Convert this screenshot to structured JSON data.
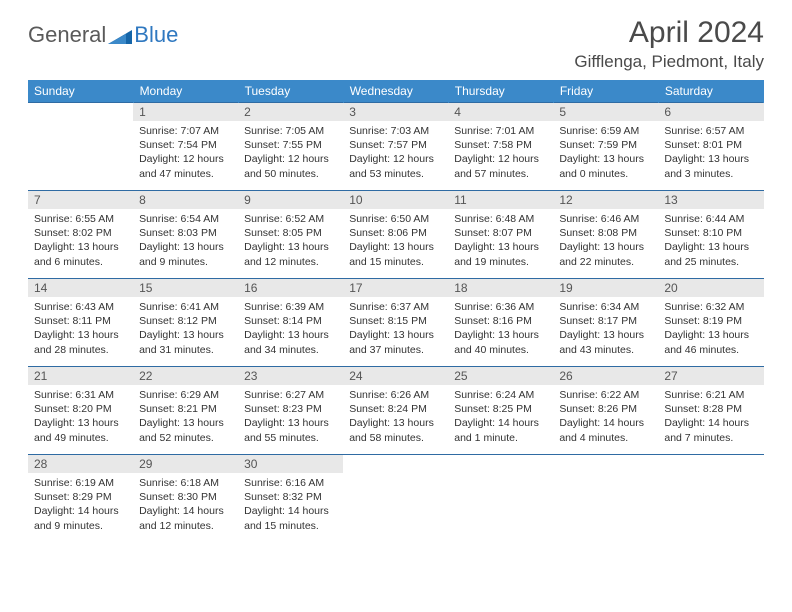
{
  "logo": {
    "general": "General",
    "blue": "Blue"
  },
  "title": "April 2024",
  "location": "Gifflenga, Piedmont, Italy",
  "colors": {
    "header_bg": "#3b89c9",
    "header_text": "#ffffff",
    "row_border": "#2f6ba3",
    "daynum_bg": "#e8e8e8",
    "logo_blue": "#2f78c0",
    "logo_gray": "#5a5a5a"
  },
  "day_headers": [
    "Sunday",
    "Monday",
    "Tuesday",
    "Wednesday",
    "Thursday",
    "Friday",
    "Saturday"
  ],
  "weeks": [
    [
      {
        "n": "",
        "lines": []
      },
      {
        "n": "1",
        "lines": [
          "Sunrise: 7:07 AM",
          "Sunset: 7:54 PM",
          "Daylight: 12 hours and 47 minutes."
        ]
      },
      {
        "n": "2",
        "lines": [
          "Sunrise: 7:05 AM",
          "Sunset: 7:55 PM",
          "Daylight: 12 hours and 50 minutes."
        ]
      },
      {
        "n": "3",
        "lines": [
          "Sunrise: 7:03 AM",
          "Sunset: 7:57 PM",
          "Daylight: 12 hours and 53 minutes."
        ]
      },
      {
        "n": "4",
        "lines": [
          "Sunrise: 7:01 AM",
          "Sunset: 7:58 PM",
          "Daylight: 12 hours and 57 minutes."
        ]
      },
      {
        "n": "5",
        "lines": [
          "Sunrise: 6:59 AM",
          "Sunset: 7:59 PM",
          "Daylight: 13 hours and 0 minutes."
        ]
      },
      {
        "n": "6",
        "lines": [
          "Sunrise: 6:57 AM",
          "Sunset: 8:01 PM",
          "Daylight: 13 hours and 3 minutes."
        ]
      }
    ],
    [
      {
        "n": "7",
        "lines": [
          "Sunrise: 6:55 AM",
          "Sunset: 8:02 PM",
          "Daylight: 13 hours and 6 minutes."
        ]
      },
      {
        "n": "8",
        "lines": [
          "Sunrise: 6:54 AM",
          "Sunset: 8:03 PM",
          "Daylight: 13 hours and 9 minutes."
        ]
      },
      {
        "n": "9",
        "lines": [
          "Sunrise: 6:52 AM",
          "Sunset: 8:05 PM",
          "Daylight: 13 hours and 12 minutes."
        ]
      },
      {
        "n": "10",
        "lines": [
          "Sunrise: 6:50 AM",
          "Sunset: 8:06 PM",
          "Daylight: 13 hours and 15 minutes."
        ]
      },
      {
        "n": "11",
        "lines": [
          "Sunrise: 6:48 AM",
          "Sunset: 8:07 PM",
          "Daylight: 13 hours and 19 minutes."
        ]
      },
      {
        "n": "12",
        "lines": [
          "Sunrise: 6:46 AM",
          "Sunset: 8:08 PM",
          "Daylight: 13 hours and 22 minutes."
        ]
      },
      {
        "n": "13",
        "lines": [
          "Sunrise: 6:44 AM",
          "Sunset: 8:10 PM",
          "Daylight: 13 hours and 25 minutes."
        ]
      }
    ],
    [
      {
        "n": "14",
        "lines": [
          "Sunrise: 6:43 AM",
          "Sunset: 8:11 PM",
          "Daylight: 13 hours and 28 minutes."
        ]
      },
      {
        "n": "15",
        "lines": [
          "Sunrise: 6:41 AM",
          "Sunset: 8:12 PM",
          "Daylight: 13 hours and 31 minutes."
        ]
      },
      {
        "n": "16",
        "lines": [
          "Sunrise: 6:39 AM",
          "Sunset: 8:14 PM",
          "Daylight: 13 hours and 34 minutes."
        ]
      },
      {
        "n": "17",
        "lines": [
          "Sunrise: 6:37 AM",
          "Sunset: 8:15 PM",
          "Daylight: 13 hours and 37 minutes."
        ]
      },
      {
        "n": "18",
        "lines": [
          "Sunrise: 6:36 AM",
          "Sunset: 8:16 PM",
          "Daylight: 13 hours and 40 minutes."
        ]
      },
      {
        "n": "19",
        "lines": [
          "Sunrise: 6:34 AM",
          "Sunset: 8:17 PM",
          "Daylight: 13 hours and 43 minutes."
        ]
      },
      {
        "n": "20",
        "lines": [
          "Sunrise: 6:32 AM",
          "Sunset: 8:19 PM",
          "Daylight: 13 hours and 46 minutes."
        ]
      }
    ],
    [
      {
        "n": "21",
        "lines": [
          "Sunrise: 6:31 AM",
          "Sunset: 8:20 PM",
          "Daylight: 13 hours and 49 minutes."
        ]
      },
      {
        "n": "22",
        "lines": [
          "Sunrise: 6:29 AM",
          "Sunset: 8:21 PM",
          "Daylight: 13 hours and 52 minutes."
        ]
      },
      {
        "n": "23",
        "lines": [
          "Sunrise: 6:27 AM",
          "Sunset: 8:23 PM",
          "Daylight: 13 hours and 55 minutes."
        ]
      },
      {
        "n": "24",
        "lines": [
          "Sunrise: 6:26 AM",
          "Sunset: 8:24 PM",
          "Daylight: 13 hours and 58 minutes."
        ]
      },
      {
        "n": "25",
        "lines": [
          "Sunrise: 6:24 AM",
          "Sunset: 8:25 PM",
          "Daylight: 14 hours and 1 minute."
        ]
      },
      {
        "n": "26",
        "lines": [
          "Sunrise: 6:22 AM",
          "Sunset: 8:26 PM",
          "Daylight: 14 hours and 4 minutes."
        ]
      },
      {
        "n": "27",
        "lines": [
          "Sunrise: 6:21 AM",
          "Sunset: 8:28 PM",
          "Daylight: 14 hours and 7 minutes."
        ]
      }
    ],
    [
      {
        "n": "28",
        "lines": [
          "Sunrise: 6:19 AM",
          "Sunset: 8:29 PM",
          "Daylight: 14 hours and 9 minutes."
        ]
      },
      {
        "n": "29",
        "lines": [
          "Sunrise: 6:18 AM",
          "Sunset: 8:30 PM",
          "Daylight: 14 hours and 12 minutes."
        ]
      },
      {
        "n": "30",
        "lines": [
          "Sunrise: 6:16 AM",
          "Sunset: 8:32 PM",
          "Daylight: 14 hours and 15 minutes."
        ]
      },
      {
        "n": "",
        "lines": []
      },
      {
        "n": "",
        "lines": []
      },
      {
        "n": "",
        "lines": []
      },
      {
        "n": "",
        "lines": []
      }
    ]
  ]
}
